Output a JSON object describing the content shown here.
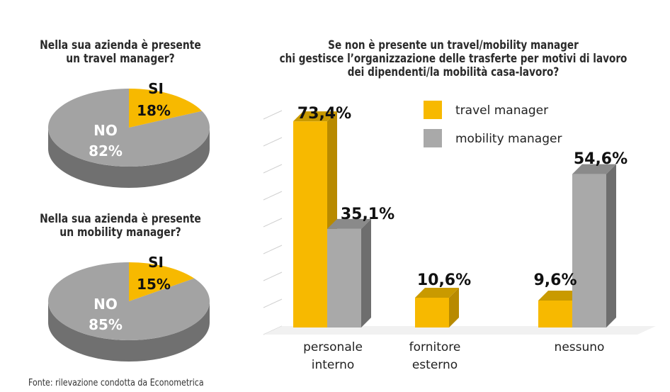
{
  "colors": {
    "yellow": "#f7b900",
    "yellow_dark": "#b88a00",
    "grey": "#a9a9a9",
    "grey_dark": "#6e6e6e",
    "grey_side": "#7d7d7d",
    "pie_grey": "#a3a3a3",
    "pie_grey_dark": "#707070"
  },
  "source": "Fonte: rilevazione condotta da Econometrica",
  "chart_data": [
    {
      "type": "pie",
      "title": "Nella sua azienda è presente\nun travel manager?",
      "slices": [
        {
          "label": "SI",
          "value": 18,
          "display": "18%"
        },
        {
          "label": "NO",
          "value": 82,
          "display": "82%"
        }
      ]
    },
    {
      "type": "pie",
      "title": "Nella sua azienda è presente\nun mobility manager?",
      "slices": [
        {
          "label": "SI",
          "value": 15,
          "display": "15%"
        },
        {
          "label": "NO",
          "value": 85,
          "display": "85%"
        }
      ]
    },
    {
      "type": "bar",
      "title": "Se non è presente un travel/mobility manager\nchi gestisce l’organizzazione delle trasferte per motivi di lavoro\ndei dipendenti/la mobilità casa-lavoro?",
      "categories": [
        "personale\ninterno",
        "fornitore\nesterno",
        "nessuno"
      ],
      "series": [
        {
          "name": "travel manager",
          "values": [
            73.4,
            10.6,
            9.6
          ],
          "labels": [
            "73,4%",
            "10,6%",
            "9,6%"
          ]
        },
        {
          "name": "mobility manager",
          "values": [
            35.1,
            null,
            54.6
          ],
          "labels": [
            "35,1%",
            "",
            "54,6%"
          ]
        }
      ],
      "ylim": [
        0,
        80
      ],
      "legend": "top-right"
    }
  ]
}
